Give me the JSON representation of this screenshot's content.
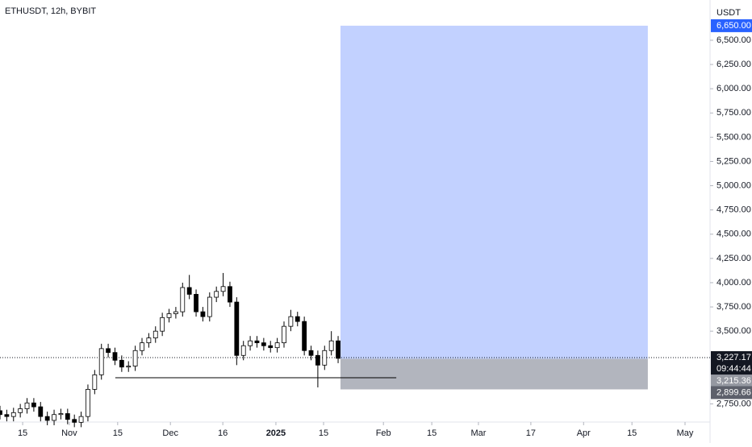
{
  "chart_data": {
    "type": "candlestick",
    "title": "ETHUSDT, 12h, BYBIT",
    "currency": "USDT",
    "x": [
      0,
      2,
      4,
      6,
      8,
      10,
      12,
      14,
      16,
      18,
      20,
      22,
      24,
      26,
      28,
      30,
      32,
      34,
      36,
      38,
      40,
      42,
      44,
      46,
      48,
      50,
      52,
      54,
      56,
      58,
      60,
      62,
      64,
      66,
      68,
      70,
      72,
      74,
      76,
      78,
      80,
      82,
      84,
      86,
      88,
      90,
      92,
      94,
      96,
      98,
      100
    ],
    "open": [
      2680,
      2640,
      2620,
      2660,
      2700,
      2760,
      2720,
      2620,
      2580,
      2640,
      2650,
      2590,
      2560,
      2620,
      2900,
      3050,
      3320,
      3280,
      3200,
      3130,
      3140,
      3300,
      3380,
      3430,
      3500,
      3640,
      3680,
      3700,
      3950,
      3880,
      3700,
      3650,
      3850,
      3910,
      3960,
      3800,
      3250,
      3350,
      3400,
      3380,
      3350,
      3330,
      3380,
      3550,
      3650,
      3600,
      3300,
      3250,
      3150,
      3300,
      3400
    ],
    "high": [
      2730,
      2690,
      2710,
      2750,
      2810,
      2810,
      2770,
      2670,
      2690,
      2700,
      2700,
      2640,
      2670,
      2950,
      3100,
      3370,
      3370,
      3330,
      3250,
      3190,
      3350,
      3430,
      3480,
      3550,
      3690,
      3730,
      3750,
      4000,
      4080,
      3930,
      3750,
      3900,
      3960,
      4100,
      4010,
      3850,
      3400,
      3450,
      3450,
      3430,
      3400,
      3430,
      3600,
      3720,
      3700,
      3650,
      3350,
      3300,
      3350,
      3500,
      3450
    ],
    "low": [
      2590,
      2570,
      2570,
      2610,
      2650,
      2670,
      2570,
      2530,
      2530,
      2590,
      2540,
      2510,
      2510,
      2570,
      2850,
      3000,
      3230,
      3150,
      3080,
      3080,
      3090,
      3250,
      3330,
      3380,
      3450,
      3590,
      3630,
      3650,
      3830,
      3650,
      3600,
      3600,
      3800,
      3860,
      3750,
      3150,
      3200,
      3300,
      3330,
      3300,
      3280,
      3280,
      3330,
      3500,
      3550,
      3250,
      3200,
      2920,
      3100,
      3250,
      3170
    ],
    "close": [
      2640,
      2620,
      2660,
      2700,
      2760,
      2720,
      2620,
      2580,
      2640,
      2650,
      2590,
      2560,
      2620,
      2900,
      3050,
      3320,
      3280,
      3200,
      3130,
      3140,
      3300,
      3380,
      3430,
      3500,
      3640,
      3680,
      3700,
      3950,
      3880,
      3700,
      3650,
      3850,
      3910,
      3960,
      3800,
      3250,
      3350,
      3400,
      3380,
      3350,
      3330,
      3380,
      3550,
      3650,
      3600,
      3300,
      3250,
      3150,
      3300,
      3400,
      3220
    ],
    "color": "#000000",
    "xlim": [
      0,
      210
    ],
    "ylim": [
      2563,
      6915
    ],
    "yticks": [
      {
        "value": 2750,
        "label": "2,750.00"
      },
      {
        "value": 3500,
        "label": "3,500.00"
      },
      {
        "value": 3750,
        "label": "3,750.00"
      },
      {
        "value": 4000,
        "label": "4,000.00"
      },
      {
        "value": 4250,
        "label": "4,250.00"
      },
      {
        "value": 4500,
        "label": "4,500.00"
      },
      {
        "value": 4750,
        "label": "4,750.00"
      },
      {
        "value": 5000,
        "label": "5,000.00"
      },
      {
        "value": 5250,
        "label": "5,250.00"
      },
      {
        "value": 5500,
        "label": "5,500.00"
      },
      {
        "value": 5750,
        "label": "5,750.00"
      },
      {
        "value": 6000,
        "label": "6,000.00"
      },
      {
        "value": 6250,
        "label": "6,250.00"
      },
      {
        "value": 6500,
        "label": "6,500.00"
      }
    ],
    "xticks": [
      {
        "value": 6.7,
        "label": "15"
      },
      {
        "value": 20.5,
        "label": "Nov"
      },
      {
        "value": 34.8,
        "label": "15"
      },
      {
        "value": 50.4,
        "label": "Dec"
      },
      {
        "value": 65.9,
        "label": "16"
      },
      {
        "value": 81.6,
        "label": "2025"
      },
      {
        "value": 95.7,
        "label": "15"
      },
      {
        "value": 113.4,
        "label": "Feb"
      },
      {
        "value": 127.7,
        "label": "15"
      },
      {
        "value": 141.5,
        "label": "Mar"
      },
      {
        "value": 157,
        "label": "17"
      },
      {
        "value": 172.6,
        "label": "Apr"
      },
      {
        "value": 186.9,
        "label": "15"
      },
      {
        "value": 202.6,
        "label": "May"
      }
    ],
    "last_price": {
      "value": 3227.17,
      "label": "3,227.17"
    },
    "countdown": "09:44:44",
    "position": {
      "x": [
        100.7,
        191.6
      ],
      "target": {
        "value": 6650,
        "label": "6,650.00"
      },
      "entry": {
        "value": 3215.36,
        "label": "3,215.36"
      },
      "stop": {
        "value": 2899.66,
        "label": "2,899.66"
      },
      "profit_color": "#c2d1ff",
      "loss_color": "#b2b5be"
    },
    "support_line": {
      "value": 3020,
      "x": [
        34.1,
        117.2
      ]
    }
  }
}
